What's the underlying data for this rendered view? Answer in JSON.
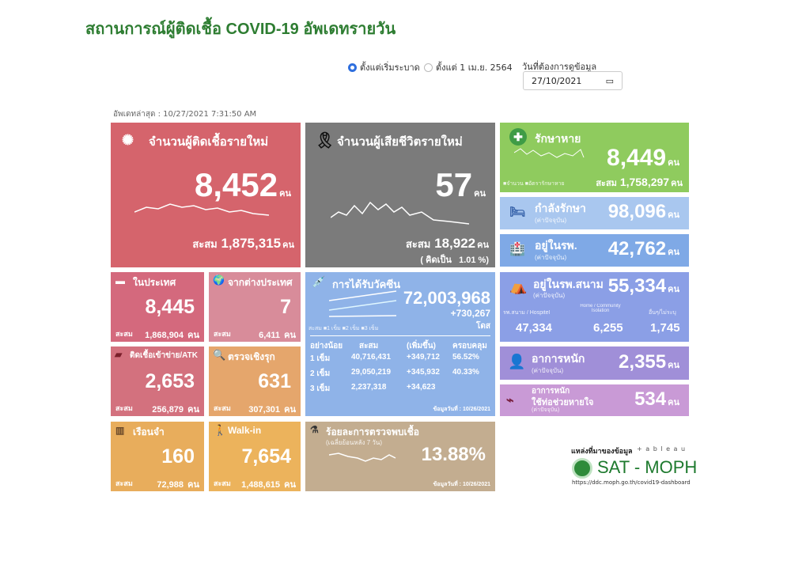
{
  "title": "สถานการณ์ผู้ติดเชื้อ COVID-19 อัพเดทรายวัน",
  "filters": {
    "option1": "ตั้งแต่เริ่มระบาด",
    "option2": "ตั้งแต่ 1 เม.ย. 2564",
    "selected": "option1",
    "date_label": "วันที่ต้องการดูข้อมูล",
    "date_value": "27/10/2021"
  },
  "updated": "อัพเดทล่าสุด : 10/27/2021 7:31:50 AM",
  "unit": "คน",
  "cum_label": "สะสม",
  "new_cases": {
    "label": "จำนวนผู้ติดเชื้อรายใหม่",
    "value": "8,452",
    "cum": "1,875,315"
  },
  "deaths": {
    "label": "จำนวนผู้เสียชีวิตรายใหม่",
    "value": "57",
    "cum": "18,922",
    "pct_label": "( คิดเป็น",
    "pct": "1.01 %)"
  },
  "recovered": {
    "label": "รักษาหาย",
    "value": "8,449",
    "cum": "1,758,297",
    "legend1": "จำนวน",
    "legend2": "อัตรารักษาหาย"
  },
  "treating": {
    "label": "กำลังรักษา",
    "note": "(ค่าปัจจุบัน)",
    "value": "98,096"
  },
  "hospital": {
    "label": "อยู่ในรพ.",
    "note": "(ค่าปัจจุบัน)",
    "value": "42,762"
  },
  "field_hospital": {
    "label": "อยู่ในรพ.สนาม",
    "note": "(ค่าปัจจุบัน)",
    "value": "55,334",
    "c1_label": "รพ.สนาม / Hospitel",
    "c1": "47,334",
    "c2_label": "Home / Community Isolation",
    "c2": "6,255",
    "c3_label": "อื่นๆ/ไม่ระบุ",
    "c3": "1,745"
  },
  "severe": {
    "label": "อาการหนัก",
    "note": "(ค่าปัจจุบัน)",
    "value": "2,355"
  },
  "ventilator": {
    "label1": "อาการหนัก",
    "label2": "ใช้ท่อช่วยหายใจ",
    "note": "(ค่าปัจจุบัน)",
    "value": "534"
  },
  "domestic": {
    "label": "ในประเทศ",
    "value": "8,445",
    "cum": "1,868,904"
  },
  "imported": {
    "label": "จากต่างประเทศ",
    "value": "7",
    "cum": "6,411"
  },
  "atk": {
    "label": "ติดเชื้อเข้าข่าย/ATK",
    "value": "2,653",
    "cum": "256,879"
  },
  "active": {
    "label": "ตรวจเชิงรุก",
    "value": "631",
    "cum": "307,301"
  },
  "prison": {
    "label": "เรือนจำ",
    "value": "160",
    "cum": "72,988"
  },
  "walkin": {
    "label": "Walk-in",
    "value": "7,654",
    "cum": "1,488,615"
  },
  "vaccine": {
    "label": "การได้รับวัคซีน",
    "total": "72,003,968",
    "increase": "+730,267",
    "dose_unit": "โดส",
    "legend": "สะสม  ■1 เข็ม ■2 เข็ม ■3 เข็ม",
    "headers": [
      "อย่างน้อย",
      "สะสม",
      "(เพิ่มขึ้น)",
      "ครอบคลุม"
    ],
    "rows": [
      [
        "1 เข็ม",
        "40,716,431",
        "+349,712",
        "56.52%"
      ],
      [
        "2 เข็ม",
        "29,050,219",
        "+345,932",
        "40.33%"
      ],
      [
        "3 เข็ม",
        "2,237,318",
        "+34,623",
        ""
      ]
    ],
    "date": "ข้อมูลวันที่ : 10/26/2021"
  },
  "positivity": {
    "label": "ร้อยละการตรวจพบเชื้อ",
    "note": "(เฉลี่ยย้อนหลัง 7 วัน)",
    "value": "13.88%",
    "date": "ข้อมูลวันที่ : 10/26/2021"
  },
  "source": {
    "label": "แหล่งที่มาของข้อมูล",
    "tableau": "+ a b l e a u",
    "brand": "SAT - MOPH",
    "url": "https://ddc.moph.go.th/covid19-dashboard"
  }
}
